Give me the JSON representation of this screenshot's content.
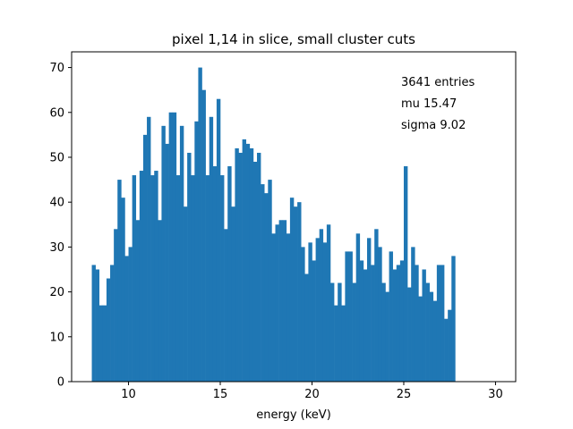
{
  "chart_data": {
    "type": "bar",
    "title": "pixel 1,14 in slice, small cluster cuts",
    "xlabel": "energy (keV)",
    "ylabel": "",
    "xlim": [
      6.9,
      31.1
    ],
    "ylim": [
      0,
      73.5
    ],
    "xticks": [
      10,
      15,
      20,
      25,
      30
    ],
    "yticks": [
      0,
      10,
      20,
      30,
      40,
      50,
      60,
      70
    ],
    "bin_start": 8.0,
    "bin_width": 0.2,
    "color": "#1f77b4",
    "values": [
      26,
      25,
      17,
      17,
      23,
      26,
      34,
      45,
      41,
      28,
      30,
      46,
      36,
      47,
      55,
      59,
      46,
      47,
      36,
      57,
      53,
      60,
      60,
      46,
      57,
      39,
      51,
      46,
      58,
      70,
      65,
      46,
      59,
      48,
      63,
      46,
      34,
      48,
      39,
      52,
      51,
      54,
      53,
      52,
      49,
      51,
      44,
      42,
      45,
      33,
      35,
      36,
      36,
      33,
      41,
      39,
      40,
      30,
      24,
      31,
      27,
      32,
      34,
      31,
      35,
      22,
      17,
      22,
      17,
      29,
      29,
      22,
      33,
      27,
      25,
      32,
      26,
      34,
      30,
      22,
      20,
      29,
      25,
      26,
      27,
      48,
      21,
      30,
      26,
      19,
      25,
      22,
      20,
      18,
      26,
      26,
      14,
      16,
      28
    ],
    "annotations": [
      "3641 entries",
      "mu 15.47",
      "sigma 9.02"
    ]
  }
}
